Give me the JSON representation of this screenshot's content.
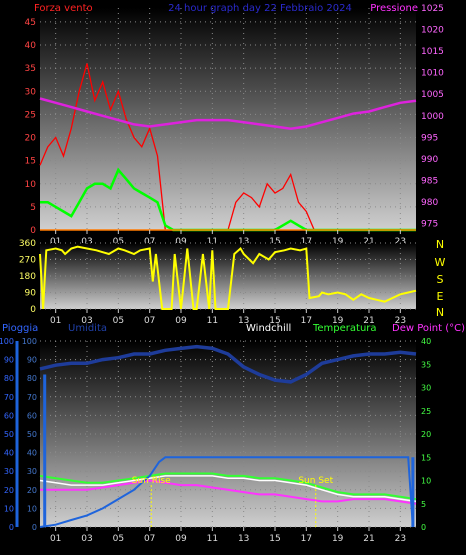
{
  "header": {
    "left": "Forza vento",
    "title": "24 hour graph day 22 Febbraio 2024",
    "right": "Pressione"
  },
  "colors": {
    "wind_gust": "#ff0000",
    "wind_avg": "#00ff00",
    "pressure": "#dd22dd",
    "direction": "#ffff00",
    "rain": "#1e64dc",
    "humidity": "#1e3c9a",
    "windchill": "#ffffff",
    "temperature": "#33ff33",
    "dewpoint": "#ff33ff",
    "sun_marker": "#ffff00",
    "axis_left_top": "#ff4444",
    "axis_right_top": "#ff66ff",
    "axis_left_bottom": "#3366ff",
    "axis_right_bottom": "#44ff44"
  },
  "compass": [
    "N",
    "W",
    "S",
    "E",
    "N"
  ],
  "chart_data": [
    {
      "type": "line",
      "title": "24 hour graph day 22 Febbraio 2024",
      "x_ticks": [
        "01",
        "03",
        "05",
        "07",
        "09",
        "11",
        "13",
        "15",
        "17",
        "19",
        "21",
        "23"
      ],
      "xlim": [
        0,
        24
      ],
      "y_left": {
        "label": "Forza vento",
        "ticks": [
          "0",
          "5",
          "10",
          "15",
          "20",
          "25",
          "30",
          "35",
          "40",
          "45"
        ],
        "lim": [
          0,
          48
        ]
      },
      "y_right": {
        "label": "Pressione",
        "ticks": [
          "975",
          "980",
          "985",
          "990",
          "995",
          "1000",
          "1005",
          "1010",
          "1015",
          "1020",
          "1025"
        ],
        "lim": [
          973.5,
          1025
        ]
      },
      "grid": true,
      "series": [
        {
          "name": "Forza vento",
          "axis": "left",
          "x": [
            0,
            0.5,
            1,
            1.5,
            2,
            2.5,
            3,
            3.5,
            4,
            4.5,
            5,
            5.5,
            6,
            6.5,
            7,
            7.5,
            8,
            8.5,
            9,
            12,
            12.5,
            13,
            13.5,
            14,
            14.5,
            15,
            15.5,
            16,
            16.5,
            17,
            17.5,
            18,
            24
          ],
          "y": [
            14,
            18,
            20,
            16,
            22,
            30,
            36,
            28,
            32,
            26,
            30,
            24,
            20,
            18,
            22,
            16,
            0,
            0,
            0,
            0,
            6,
            8,
            7,
            5,
            10,
            8,
            9,
            12,
            6,
            4,
            0,
            0,
            0
          ]
        },
        {
          "name": "Forza vento (media)",
          "axis": "left",
          "x": [
            0,
            0.5,
            1,
            1.5,
            2,
            2.5,
            3,
            3.5,
            4,
            4.5,
            5,
            5.5,
            6,
            6.5,
            7,
            7.5,
            8,
            8.5,
            12,
            13,
            14,
            15,
            15.5,
            16,
            16.5,
            17,
            24
          ],
          "y": [
            6,
            6,
            5,
            4,
            3,
            6,
            9,
            10,
            10,
            9,
            13,
            11,
            9,
            8,
            7,
            6,
            1,
            0,
            0,
            0,
            0,
            0,
            1,
            2,
            1,
            0,
            0
          ]
        },
        {
          "name": "Pressione",
          "axis": "right",
          "x": [
            0,
            1,
            2,
            3,
            4,
            5,
            6,
            7,
            8,
            9,
            10,
            11,
            12,
            13,
            14,
            15,
            16,
            17,
            18,
            19,
            20,
            21,
            22,
            23,
            24
          ],
          "y": [
            1004,
            1003,
            1002,
            1001,
            1000,
            999,
            998,
            997.5,
            998,
            998.5,
            999,
            999,
            999,
            998.5,
            998,
            997.5,
            997,
            997.5,
            998.5,
            999.5,
            1000.5,
            1001,
            1002,
            1003,
            1003.5
          ]
        }
      ]
    },
    {
      "type": "line",
      "x_ticks": [
        "01",
        "03",
        "05",
        "07",
        "09",
        "11",
        "13",
        "15",
        "17",
        "19",
        "21",
        "23"
      ],
      "xlim": [
        0,
        24
      ],
      "y_left": {
        "ticks": [
          "0",
          "90",
          "180",
          "270",
          "360"
        ],
        "lim": [
          0,
          360
        ]
      },
      "grid": true,
      "series": [
        {
          "name": "Direzione vento",
          "x": [
            0,
            0.2,
            0.4,
            1,
            1.4,
            1.6,
            2,
            2.4,
            3,
            3.6,
            4,
            4.4,
            5,
            5.4,
            6,
            6.4,
            7,
            7.2,
            7.4,
            7.8,
            8,
            8.4,
            8.6,
            9,
            9.4,
            9.8,
            10,
            10.4,
            10.8,
            11,
            11.2,
            11.6,
            12,
            12.4,
            12.8,
            13,
            13.6,
            14,
            14.6,
            15,
            15.6,
            16,
            16.6,
            17,
            17.2,
            17.8,
            18,
            18.4,
            19,
            19.5,
            20,
            20.5,
            21,
            21.5,
            22,
            22.5,
            23,
            23.5,
            24
          ],
          "y": [
            300,
            0,
            320,
            330,
            320,
            300,
            330,
            340,
            330,
            320,
            310,
            300,
            330,
            320,
            300,
            320,
            330,
            150,
            300,
            0,
            0,
            0,
            300,
            0,
            330,
            0,
            0,
            300,
            0,
            320,
            0,
            0,
            0,
            300,
            330,
            300,
            250,
            300,
            270,
            310,
            320,
            330,
            320,
            330,
            60,
            70,
            90,
            80,
            90,
            80,
            50,
            80,
            60,
            50,
            40,
            60,
            80,
            90,
            100
          ]
        }
      ]
    },
    {
      "type": "line",
      "x_ticks": [
        "01",
        "03",
        "05",
        "07",
        "09",
        "11",
        "13",
        "15",
        "17",
        "19",
        "21",
        "23"
      ],
      "xlim": [
        0,
        24
      ],
      "y_left_outer": {
        "label": "Pioggia",
        "ticks": [
          "0",
          "10",
          "20",
          "30",
          "40",
          "50",
          "60",
          "70",
          "80",
          "90",
          "100"
        ],
        "lim": [
          0,
          100
        ]
      },
      "y_left_inner": {
        "label": "Umidità",
        "ticks": [
          "0",
          "10",
          "20",
          "30",
          "40",
          "50",
          "60",
          "70",
          "80",
          "90",
          "100"
        ],
        "lim": [
          0,
          100
        ]
      },
      "y_right": {
        "label": "Dew Point (°C)",
        "ticks": [
          "0",
          "5",
          "10",
          "15",
          "20",
          "25",
          "30",
          "35",
          "40"
        ],
        "lim": [
          0,
          40
        ]
      },
      "grid": true,
      "legend": [
        "Pioggia",
        "Umidita",
        "Windchill",
        "Temperatura",
        "Dew Point (°C)"
      ],
      "annotations": [
        {
          "text": "Sun Rise",
          "x": 7.1
        },
        {
          "text": "Sun Set",
          "x": 17.6
        }
      ],
      "series": [
        {
          "name": "Pioggia",
          "axis": "right",
          "x": [
            0,
            1,
            2,
            3,
            4,
            5,
            6,
            6.5,
            7,
            7.3,
            7.6,
            8,
            12,
            16,
            20,
            23.5,
            23.8
          ],
          "y": [
            0,
            0.5,
            1.5,
            2.5,
            4,
            6,
            8,
            9.5,
            11,
            12.5,
            14,
            15,
            15,
            15,
            15,
            15,
            0
          ]
        },
        {
          "name": "Umidita",
          "axis": "left",
          "x": [
            0,
            1,
            2,
            3,
            4,
            5,
            6,
            7,
            8,
            9,
            10,
            11,
            12,
            13,
            14,
            15,
            16,
            17,
            18,
            19,
            20,
            21,
            22,
            23,
            24
          ],
          "y": [
            85,
            87,
            88,
            88,
            90,
            91,
            93,
            93,
            95,
            96,
            97,
            96,
            93,
            86,
            82,
            79,
            78,
            82,
            88,
            90,
            92,
            93,
            93,
            94,
            93
          ]
        },
        {
          "name": "Windchill",
          "axis": "right",
          "x": [
            0,
            1,
            2,
            3,
            4,
            5,
            6,
            7,
            8,
            9,
            10,
            11,
            12,
            13,
            14,
            15,
            16,
            17,
            18,
            19,
            20,
            21,
            22,
            23,
            24
          ],
          "y": [
            10,
            9.5,
            9,
            9,
            9,
            9.5,
            10,
            10.5,
            11,
            11,
            11,
            11,
            10.5,
            10.5,
            10,
            10,
            9.5,
            9,
            8,
            7,
            6.5,
            6.5,
            6.5,
            6,
            5.5
          ]
        },
        {
          "name": "Temperatura",
          "axis": "right",
          "x": [
            0,
            1,
            2,
            3,
            4,
            5,
            6,
            7,
            8,
            9,
            10,
            11,
            12,
            13,
            14,
            15,
            16,
            17,
            18,
            19,
            20,
            21,
            22,
            23,
            24
          ],
          "y": [
            11,
            10.5,
            10,
            9.5,
            9.5,
            10,
            10.5,
            11,
            11.5,
            11.5,
            11.5,
            11.5,
            11,
            11,
            10.5,
            10.5,
            10,
            9.5,
            8.5,
            7.5,
            7,
            7,
            7,
            6.5,
            6
          ]
        },
        {
          "name": "Dew Point (°C)",
          "axis": "right",
          "x": [
            0,
            1,
            2,
            3,
            4,
            5,
            6,
            7,
            8,
            9,
            10,
            11,
            12,
            13,
            14,
            15,
            16,
            17,
            18,
            19,
            20,
            21,
            22,
            23,
            24
          ],
          "y": [
            8,
            8,
            8,
            8,
            8.5,
            9,
            9.5,
            10,
            9.5,
            9,
            9,
            8.5,
            8,
            7.5,
            7,
            7,
            6.5,
            6,
            5.5,
            5.5,
            6,
            6,
            6,
            5.5,
            5
          ]
        }
      ]
    }
  ]
}
